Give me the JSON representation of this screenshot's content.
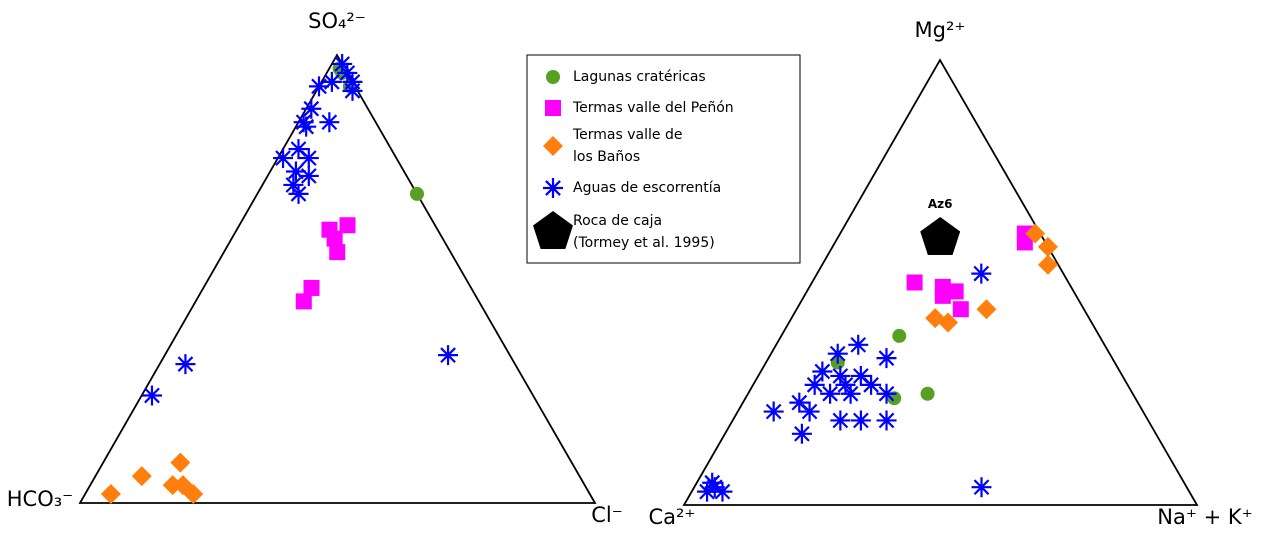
{
  "chart_data": [
    {
      "type": "ternary",
      "axes": [
        "SO₄²⁻",
        "HCO₃⁻",
        "Cl⁻"
      ],
      "series": [
        {
          "name": "Lagunas cratéricas",
          "color": "#58a024",
          "marker": "circle",
          "values": [
            [
              97,
              1,
              2
            ],
            [
              96,
              1,
              3
            ],
            [
              93,
              1,
              6
            ],
            [
              69,
              0,
              31
            ]
          ]
        },
        {
          "name": "Termas valle del Peñón",
          "color": "#ff00ff",
          "marker": "square",
          "values": [
            [
              62,
              17,
              21
            ],
            [
              61,
              21,
              18
            ],
            [
              59,
              21,
              20
            ],
            [
              56,
              22,
              22
            ],
            [
              48,
              31,
              21
            ],
            [
              45,
              34,
              21
            ]
          ]
        },
        {
          "name": "Termas valle de\nlos Baños",
          "color": "#ff7f0e",
          "marker": "diamond",
          "values": [
            [
              2,
              93,
              5
            ],
            [
              6,
              85,
              9
            ],
            [
              9,
              76,
              15
            ],
            [
              4,
              80,
              16
            ],
            [
              4,
              78,
              18
            ],
            [
              2,
              77,
              21
            ]
          ]
        },
        {
          "name": "Aguas de escorrentía",
          "color": "#0000ff",
          "marker": "star",
          "values": [
            [
              98,
              0,
              2
            ],
            [
              96,
              0,
              4
            ],
            [
              94,
              0,
              6
            ],
            [
              93,
              7,
              0
            ],
            [
              92,
              1,
              7
            ],
            [
              94,
              4,
              2
            ],
            [
              88,
              11,
              1
            ],
            [
              85,
              14,
              1
            ],
            [
              84,
              14,
              2
            ],
            [
              85,
              9,
              6
            ],
            [
              79,
              18,
              3
            ],
            [
              77,
              17,
              6
            ],
            [
              77,
              22,
              1
            ],
            [
              74,
              21,
              5
            ],
            [
              73,
              19,
              8
            ],
            [
              71,
              23,
              6
            ],
            [
              69,
              23,
              8
            ],
            [
              31,
              64,
              5
            ],
            [
              24,
              74,
              2
            ],
            [
              33,
              12,
              55
            ]
          ]
        }
      ]
    },
    {
      "type": "ternary",
      "axes": [
        "Mg²⁺",
        "Ca²⁺",
        "Na⁺ + K⁺"
      ],
      "series": [
        {
          "name": "Lagunas cratéricas",
          "color": "#58a024",
          "marker": "circle",
          "values": [
            [
              32,
              54,
              14
            ],
            [
              38,
              39,
              23
            ],
            [
              24,
              47,
              29
            ],
            [
              25,
              40,
              35
            ]
          ]
        },
        {
          "name": "Termas valle del Peñón",
          "color": "#ff00ff",
          "marker": "square",
          "values": [
            [
              61,
              3,
              36
            ],
            [
              59,
              4,
              37
            ],
            [
              50,
              30,
              20
            ],
            [
              49,
              25,
              26
            ],
            [
              48,
              23,
              29
            ],
            [
              47,
              26,
              27
            ],
            [
              44,
              24,
              32
            ]
          ]
        },
        {
          "name": "Termas valle de\nlos Baños",
          "color": "#ff7f0e",
          "marker": "diamond",
          "values": [
            [
              61,
              1,
              38
            ],
            [
              58,
              0,
              42
            ],
            [
              54,
              2,
              44
            ],
            [
              42,
              30,
              28
            ],
            [
              41,
              28,
              31
            ],
            [
              44,
              19,
              37
            ]
          ]
        },
        {
          "name": "Aguas de escorrentía",
          "color": "#0000ff",
          "marker": "star",
          "values": [
            [
              52,
              16,
              32
            ],
            [
              36,
              48,
              16
            ],
            [
              34,
              53,
              13
            ],
            [
              33,
              44,
              23
            ],
            [
              30,
              58,
              12
            ],
            [
              29,
              55,
              16
            ],
            [
              29,
              51,
              20
            ],
            [
              27,
              61,
              12
            ],
            [
              27,
              55,
              18
            ],
            [
              25,
              59,
              16
            ],
            [
              25,
              55,
              20
            ],
            [
              27,
              50,
              23
            ],
            [
              23,
              66,
              11
            ],
            [
              21,
              72,
              7
            ],
            [
              21,
              65,
              14
            ],
            [
              19,
              60,
              21
            ],
            [
              19,
              56,
              25
            ],
            [
              19,
              51,
              30
            ],
            [
              16,
              69,
              15
            ],
            [
              25,
              48,
              27
            ],
            [
              4,
              92,
              4
            ],
            [
              3,
              94,
              3
            ],
            [
              3,
              91,
              6
            ],
            [
              5,
              92,
              3
            ],
            [
              4,
              40,
              56
            ]
          ]
        },
        {
          "name": "Roca de caja\n(Tormey et al. 1995)",
          "color": "#000000",
          "marker": "pentagon",
          "values": [
            [
              60,
              20,
              20
            ]
          ],
          "point_labels": [
            "Az6"
          ]
        }
      ]
    }
  ]
}
